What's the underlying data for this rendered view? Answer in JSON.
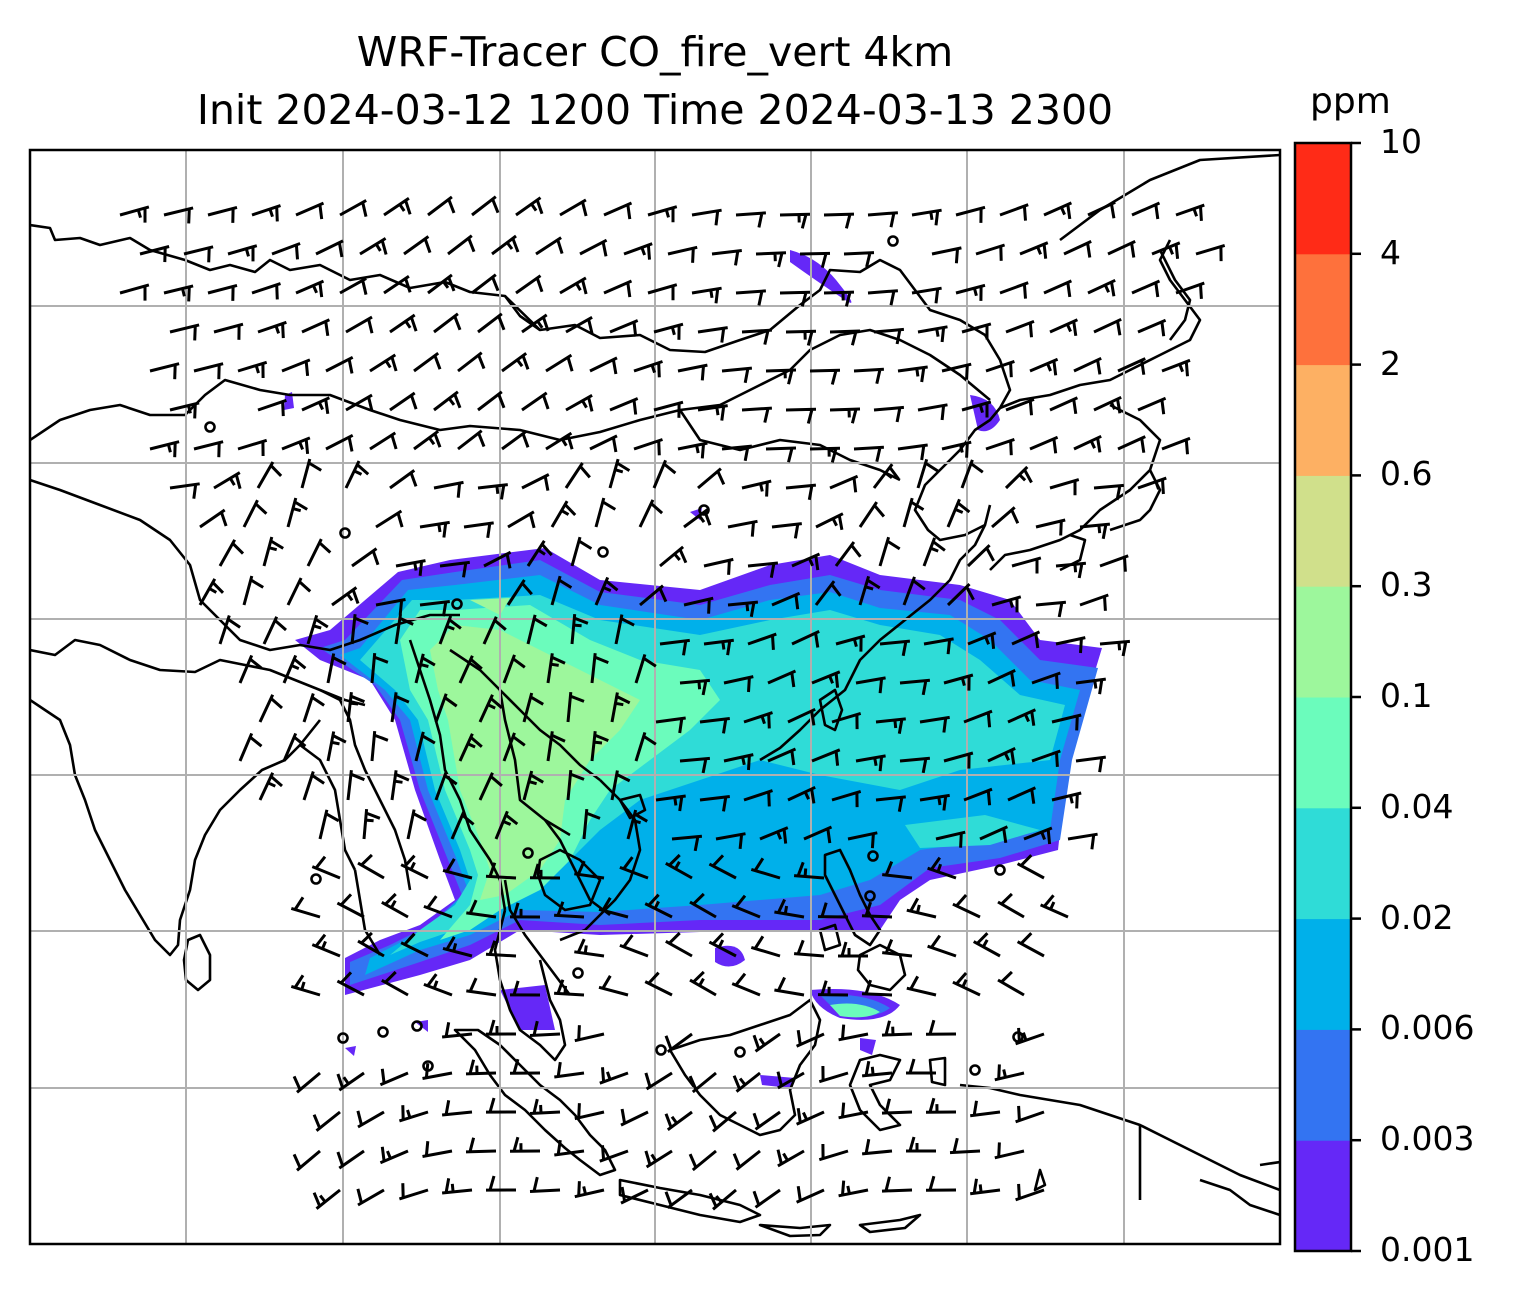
{
  "title": {
    "line1": "WRF-Tracer CO_fire_vert 4km",
    "line2": "Init 2024-03-12 1200 Time 2024-03-13 2300"
  },
  "colorbar": {
    "unit": "ppm",
    "levels": [
      "0.001",
      "0.003",
      "0.006",
      "0.02",
      "0.04",
      "0.1",
      "0.3",
      "0.6",
      "2",
      "4",
      "10"
    ],
    "colors": [
      "#6528f7",
      "#3374f2",
      "#00b0ea",
      "#2fdcd7",
      "#6bfcbc",
      "#9df79c",
      "#d0e08b",
      "#fdb063",
      "#fe713c",
      "#ff2b17"
    ]
  },
  "map": {
    "plume_color_note": "concentration shading",
    "wind_barbs": "wind barbs overlay",
    "calm_circles": "calm wind markers"
  }
}
